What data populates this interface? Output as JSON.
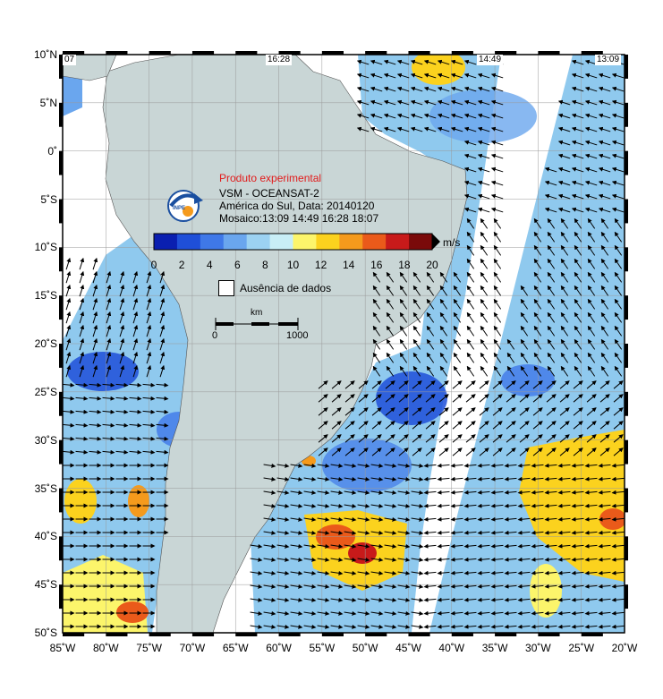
{
  "title": {
    "experimental": "Produto experimental",
    "product": "VSM - OCEANSAT-2",
    "region_date": "América do Sul, Data: 20140120",
    "mosaic": "Mosaico:13:09 14:49 16:28 18:07"
  },
  "pass_times": [
    "07",
    "16:28",
    "14:49",
    "13:09"
  ],
  "colorbar": {
    "unit": "m/s",
    "ticks": [
      "0",
      "2",
      "4",
      "6",
      "8",
      "10",
      "12",
      "14",
      "16",
      "18",
      "20"
    ],
    "colors": [
      "#0a1fb0",
      "#1f4fd8",
      "#3f78e8",
      "#6aa6ee",
      "#9cd2f2",
      "#c8eef6",
      "#fcf56b",
      "#fbd21e",
      "#f59a1c",
      "#ea5a1a",
      "#c81a1a",
      "#7a0a0a"
    ]
  },
  "legend": {
    "no_data": "Ausência de dados"
  },
  "scale_bar": {
    "unit": "km",
    "start": "0",
    "end": "1000"
  },
  "lat_labels": [
    "10˚N",
    "5˚N",
    "0˚",
    "5˚S",
    "10˚S",
    "15˚S",
    "20˚S",
    "25˚S",
    "30˚S",
    "35˚S",
    "40˚S",
    "45˚S",
    "50˚S"
  ],
  "lon_labels": [
    "85˚W",
    "80˚W",
    "75˚W",
    "70˚W",
    "65˚W",
    "60˚W",
    "55˚W",
    "50˚W",
    "45˚W",
    "40˚W",
    "35˚W",
    "30˚W",
    "25˚W",
    "20˚W"
  ],
  "colors": {
    "land": "#c9d6d6",
    "frame": "#000000",
    "ocean_base": "#8fc9ee"
  }
}
